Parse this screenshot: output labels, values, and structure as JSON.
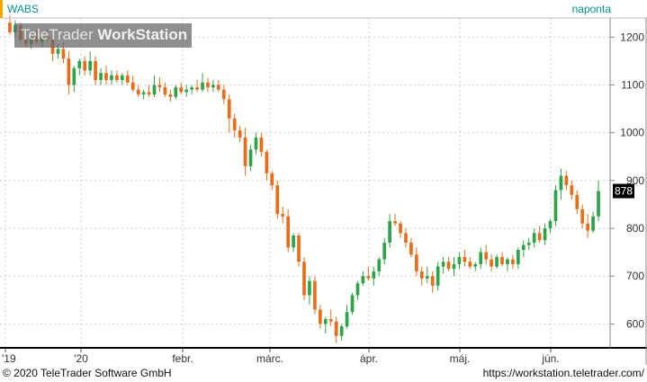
{
  "header": {
    "ticker": "WABS",
    "period": "naponta"
  },
  "watermark": {
    "brand": "TeleTrader",
    "product": "WorkStation"
  },
  "footer": {
    "copyright": "© 2020 TeleTrader Software GmbH",
    "url": "https://workstation.teletrader.com/"
  },
  "colors": {
    "up": "#2fa34a",
    "down": "#e86d1a",
    "axis_text": "#333333",
    "grid": "#cfcfcf",
    "last_price_bg": "#000000"
  },
  "chart_data": {
    "type": "candlestick",
    "ylim": [
      550,
      1240
    ],
    "y_ticks": [
      600,
      700,
      800,
      900,
      1000,
      1100,
      1200
    ],
    "x_labels": [
      "'19",
      "'20",
      "febr.",
      "márc.",
      "ápr.",
      "máj.",
      "jún."
    ],
    "last_price": "878",
    "candles": [
      [
        1230,
        1245,
        1205,
        1210
      ],
      [
        1210,
        1235,
        1200,
        1225
      ],
      [
        1225,
        1230,
        1190,
        1195
      ],
      [
        1195,
        1210,
        1180,
        1185
      ],
      [
        1185,
        1205,
        1175,
        1200
      ],
      [
        1200,
        1215,
        1185,
        1190
      ],
      [
        1190,
        1210,
        1180,
        1200
      ],
      [
        1200,
        1215,
        1190,
        1195
      ],
      [
        1195,
        1205,
        1150,
        1165
      ],
      [
        1165,
        1185,
        1155,
        1175
      ],
      [
        1175,
        1190,
        1145,
        1155
      ],
      [
        1155,
        1170,
        1080,
        1100
      ],
      [
        1100,
        1140,
        1085,
        1135
      ],
      [
        1135,
        1155,
        1120,
        1150
      ],
      [
        1150,
        1160,
        1120,
        1130
      ],
      [
        1130,
        1170,
        1120,
        1150
      ],
      [
        1150,
        1160,
        1100,
        1110
      ],
      [
        1110,
        1135,
        1100,
        1125
      ],
      [
        1125,
        1140,
        1100,
        1110
      ],
      [
        1110,
        1130,
        1100,
        1120
      ],
      [
        1120,
        1130,
        1105,
        1110
      ],
      [
        1110,
        1125,
        1100,
        1120
      ],
      [
        1120,
        1130,
        1100,
        1105
      ],
      [
        1105,
        1120,
        1085,
        1090
      ],
      [
        1090,
        1100,
        1075,
        1080
      ],
      [
        1080,
        1090,
        1070,
        1085
      ],
      [
        1085,
        1100,
        1075,
        1080
      ],
      [
        1080,
        1120,
        1075,
        1100
      ],
      [
        1100,
        1115,
        1085,
        1095
      ],
      [
        1095,
        1105,
        1075,
        1080
      ],
      [
        1080,
        1090,
        1065,
        1075
      ],
      [
        1075,
        1100,
        1070,
        1095
      ],
      [
        1095,
        1105,
        1080,
        1085
      ],
      [
        1085,
        1100,
        1075,
        1090
      ],
      [
        1090,
        1100,
        1080,
        1095
      ],
      [
        1095,
        1110,
        1085,
        1090
      ],
      [
        1090,
        1125,
        1085,
        1105
      ],
      [
        1105,
        1115,
        1085,
        1095
      ],
      [
        1095,
        1110,
        1085,
        1100
      ],
      [
        1100,
        1110,
        1085,
        1090
      ],
      [
        1090,
        1100,
        1060,
        1070
      ],
      [
        1070,
        1080,
        1000,
        1030
      ],
      [
        1030,
        1040,
        990,
        1005
      ],
      [
        1005,
        1015,
        980,
        990
      ],
      [
        990,
        1010,
        910,
        930
      ],
      [
        930,
        975,
        920,
        965
      ],
      [
        965,
        1000,
        955,
        990
      ],
      [
        990,
        1000,
        950,
        960
      ],
      [
        960,
        965,
        900,
        915
      ],
      [
        915,
        920,
        880,
        890
      ],
      [
        890,
        900,
        820,
        830
      ],
      [
        830,
        845,
        810,
        825
      ],
      [
        825,
        840,
        750,
        760
      ],
      [
        760,
        790,
        750,
        785
      ],
      [
        785,
        790,
        720,
        730
      ],
      [
        730,
        740,
        650,
        660
      ],
      [
        660,
        700,
        640,
        690
      ],
      [
        690,
        700,
        620,
        630
      ],
      [
        630,
        640,
        590,
        600
      ],
      [
        600,
        615,
        580,
        610
      ],
      [
        610,
        630,
        595,
        605
      ],
      [
        605,
        615,
        560,
        575
      ],
      [
        575,
        600,
        565,
        595
      ],
      [
        595,
        640,
        590,
        625
      ],
      [
        625,
        665,
        620,
        660
      ],
      [
        660,
        690,
        650,
        685
      ],
      [
        685,
        710,
        680,
        700
      ],
      [
        700,
        720,
        690,
        695
      ],
      [
        695,
        720,
        680,
        710
      ],
      [
        710,
        740,
        700,
        735
      ],
      [
        735,
        780,
        725,
        770
      ],
      [
        770,
        830,
        760,
        815
      ],
      [
        815,
        830,
        805,
        810
      ],
      [
        810,
        815,
        780,
        790
      ],
      [
        790,
        800,
        760,
        770
      ],
      [
        770,
        780,
        740,
        745
      ],
      [
        745,
        760,
        700,
        710
      ],
      [
        710,
        720,
        680,
        695
      ],
      [
        695,
        720,
        685,
        700
      ],
      [
        700,
        710,
        665,
        680
      ],
      [
        680,
        730,
        670,
        720
      ],
      [
        720,
        740,
        705,
        730
      ],
      [
        730,
        740,
        710,
        715
      ],
      [
        715,
        740,
        700,
        725
      ],
      [
        725,
        750,
        715,
        740
      ],
      [
        740,
        755,
        720,
        730
      ],
      [
        730,
        740,
        715,
        720
      ],
      [
        720,
        730,
        710,
        725
      ],
      [
        725,
        760,
        715,
        750
      ],
      [
        750,
        765,
        725,
        735
      ],
      [
        735,
        745,
        710,
        720
      ],
      [
        720,
        745,
        715,
        740
      ],
      [
        740,
        750,
        720,
        725
      ],
      [
        725,
        740,
        710,
        735
      ],
      [
        735,
        745,
        715,
        725
      ],
      [
        725,
        760,
        715,
        755
      ],
      [
        755,
        775,
        740,
        765
      ],
      [
        765,
        780,
        755,
        770
      ],
      [
        770,
        800,
        760,
        790
      ],
      [
        790,
        805,
        770,
        775
      ],
      [
        775,
        810,
        765,
        800
      ],
      [
        800,
        820,
        790,
        815
      ],
      [
        815,
        890,
        805,
        880
      ],
      [
        880,
        925,
        860,
        910
      ],
      [
        910,
        920,
        880,
        890
      ],
      [
        890,
        900,
        860,
        870
      ],
      [
        870,
        880,
        830,
        840
      ],
      [
        840,
        850,
        800,
        810
      ],
      [
        810,
        830,
        780,
        795
      ],
      [
        795,
        835,
        790,
        825
      ],
      [
        825,
        900,
        815,
        878
      ]
    ]
  }
}
